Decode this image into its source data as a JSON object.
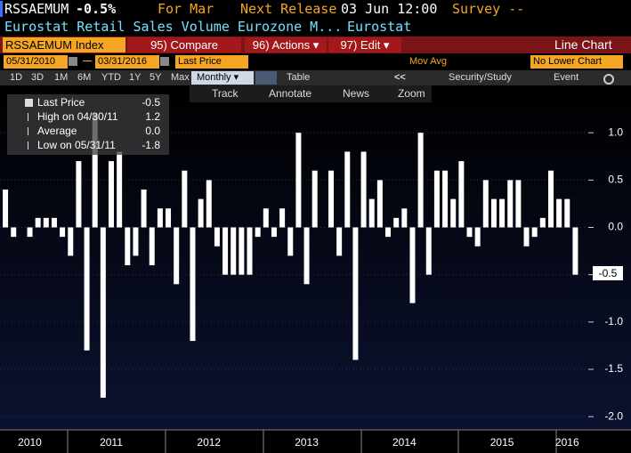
{
  "header": {
    "ticker": "RSSAEMUM",
    "change": "-0.5%",
    "period_label": "For Mar",
    "release_label": "Next Release",
    "release_date": "03 Jun 12:00",
    "survey": "Survey --",
    "description": "Eurostat Retail Sales Volume Eurozone M...",
    "source": "Eurostat"
  },
  "toolbar": {
    "security": "RSSAEMUM Index",
    "buttons": [
      "95) Compare",
      "96) Actions ▾",
      "97) Edit ▾"
    ],
    "chart_type": "Line Chart"
  },
  "range_bar": {
    "start": "05/31/2010",
    "end": "03/31/2016",
    "field": "Last Price",
    "study": "Mov Avg",
    "lower": "No Lower Chart"
  },
  "periods": [
    "1D",
    "3D",
    "1M",
    "6M",
    "YTD",
    "1Y",
    "5Y",
    "Max"
  ],
  "frequency": "Monthly ▾",
  "table": "Table",
  "nav": "<<",
  "study": "Security/Study",
  "event": "Event",
  "tools": [
    "Track",
    "Annotate",
    "News",
    "Zoom"
  ],
  "chart_data": {
    "type": "bar",
    "color": "#ffffff",
    "categories": [
      null,
      null,
      null,
      "2010",
      null,
      null,
      null,
      null,
      null,
      null,
      null,
      null,
      null,
      "2011",
      null,
      null,
      null,
      null,
      null,
      null,
      null,
      null,
      null,
      null,
      null,
      "2012",
      null,
      null,
      null,
      null,
      null,
      null,
      null,
      null,
      null,
      null,
      null,
      "2013",
      null,
      null,
      null,
      null,
      null,
      null,
      null,
      null,
      null,
      null,
      null,
      "2014",
      null,
      null,
      null,
      null,
      null,
      null,
      null,
      null,
      null,
      null,
      null,
      "2015",
      null,
      null,
      null,
      null,
      null,
      null,
      null,
      "2016",
      null
    ],
    "values": [
      0.4,
      -0.1,
      0.0,
      -0.1,
      0.1,
      0.1,
      0.1,
      -0.1,
      -0.3,
      0.7,
      -1.3,
      1.2,
      -1.8,
      0.7,
      0.8,
      -0.4,
      -0.3,
      0.4,
      -0.4,
      0.2,
      0.2,
      -0.6,
      0.6,
      -1.2,
      0.3,
      0.5,
      -0.2,
      -0.5,
      -0.5,
      -0.5,
      -0.5,
      -0.1,
      0.2,
      -0.1,
      0.2,
      -0.3,
      1.0,
      -0.6,
      0.6,
      0.0,
      0.6,
      -0.3,
      0.8,
      -1.4,
      0.8,
      0.3,
      0.5,
      -0.1,
      0.1,
      0.2,
      -0.8,
      1.0,
      -0.5,
      0.6,
      0.6,
      0.3,
      0.7,
      -0.1,
      -0.2,
      0.5,
      0.3,
      0.3,
      0.5,
      0.5,
      -0.2,
      -0.1,
      0.1,
      0.6,
      0.3,
      0.3,
      -0.5
    ],
    "ylim": [
      -2.13,
      1.5
    ],
    "yticks": [
      {
        "value": 1,
        "label": "1.0"
      },
      {
        "value": 0.5,
        "label": "0.5"
      },
      {
        "value": 0,
        "label": "0.0"
      },
      {
        "value": -0.5,
        "label": "-0.5"
      },
      {
        "value": -1,
        "label": "-1.0"
      },
      {
        "value": -1.5,
        "label": "-1.5"
      },
      {
        "value": -2,
        "label": "-2.0"
      }
    ],
    "grid": true,
    "legend": [
      {
        "label": "Last Price",
        "value": "-0.5"
      },
      {
        "label": "High on 04/30/11",
        "value": "1.2"
      },
      {
        "label": "Average",
        "value": "0.0"
      },
      {
        "label": "Low on 05/31/11",
        "value": "-1.8"
      }
    ]
  }
}
